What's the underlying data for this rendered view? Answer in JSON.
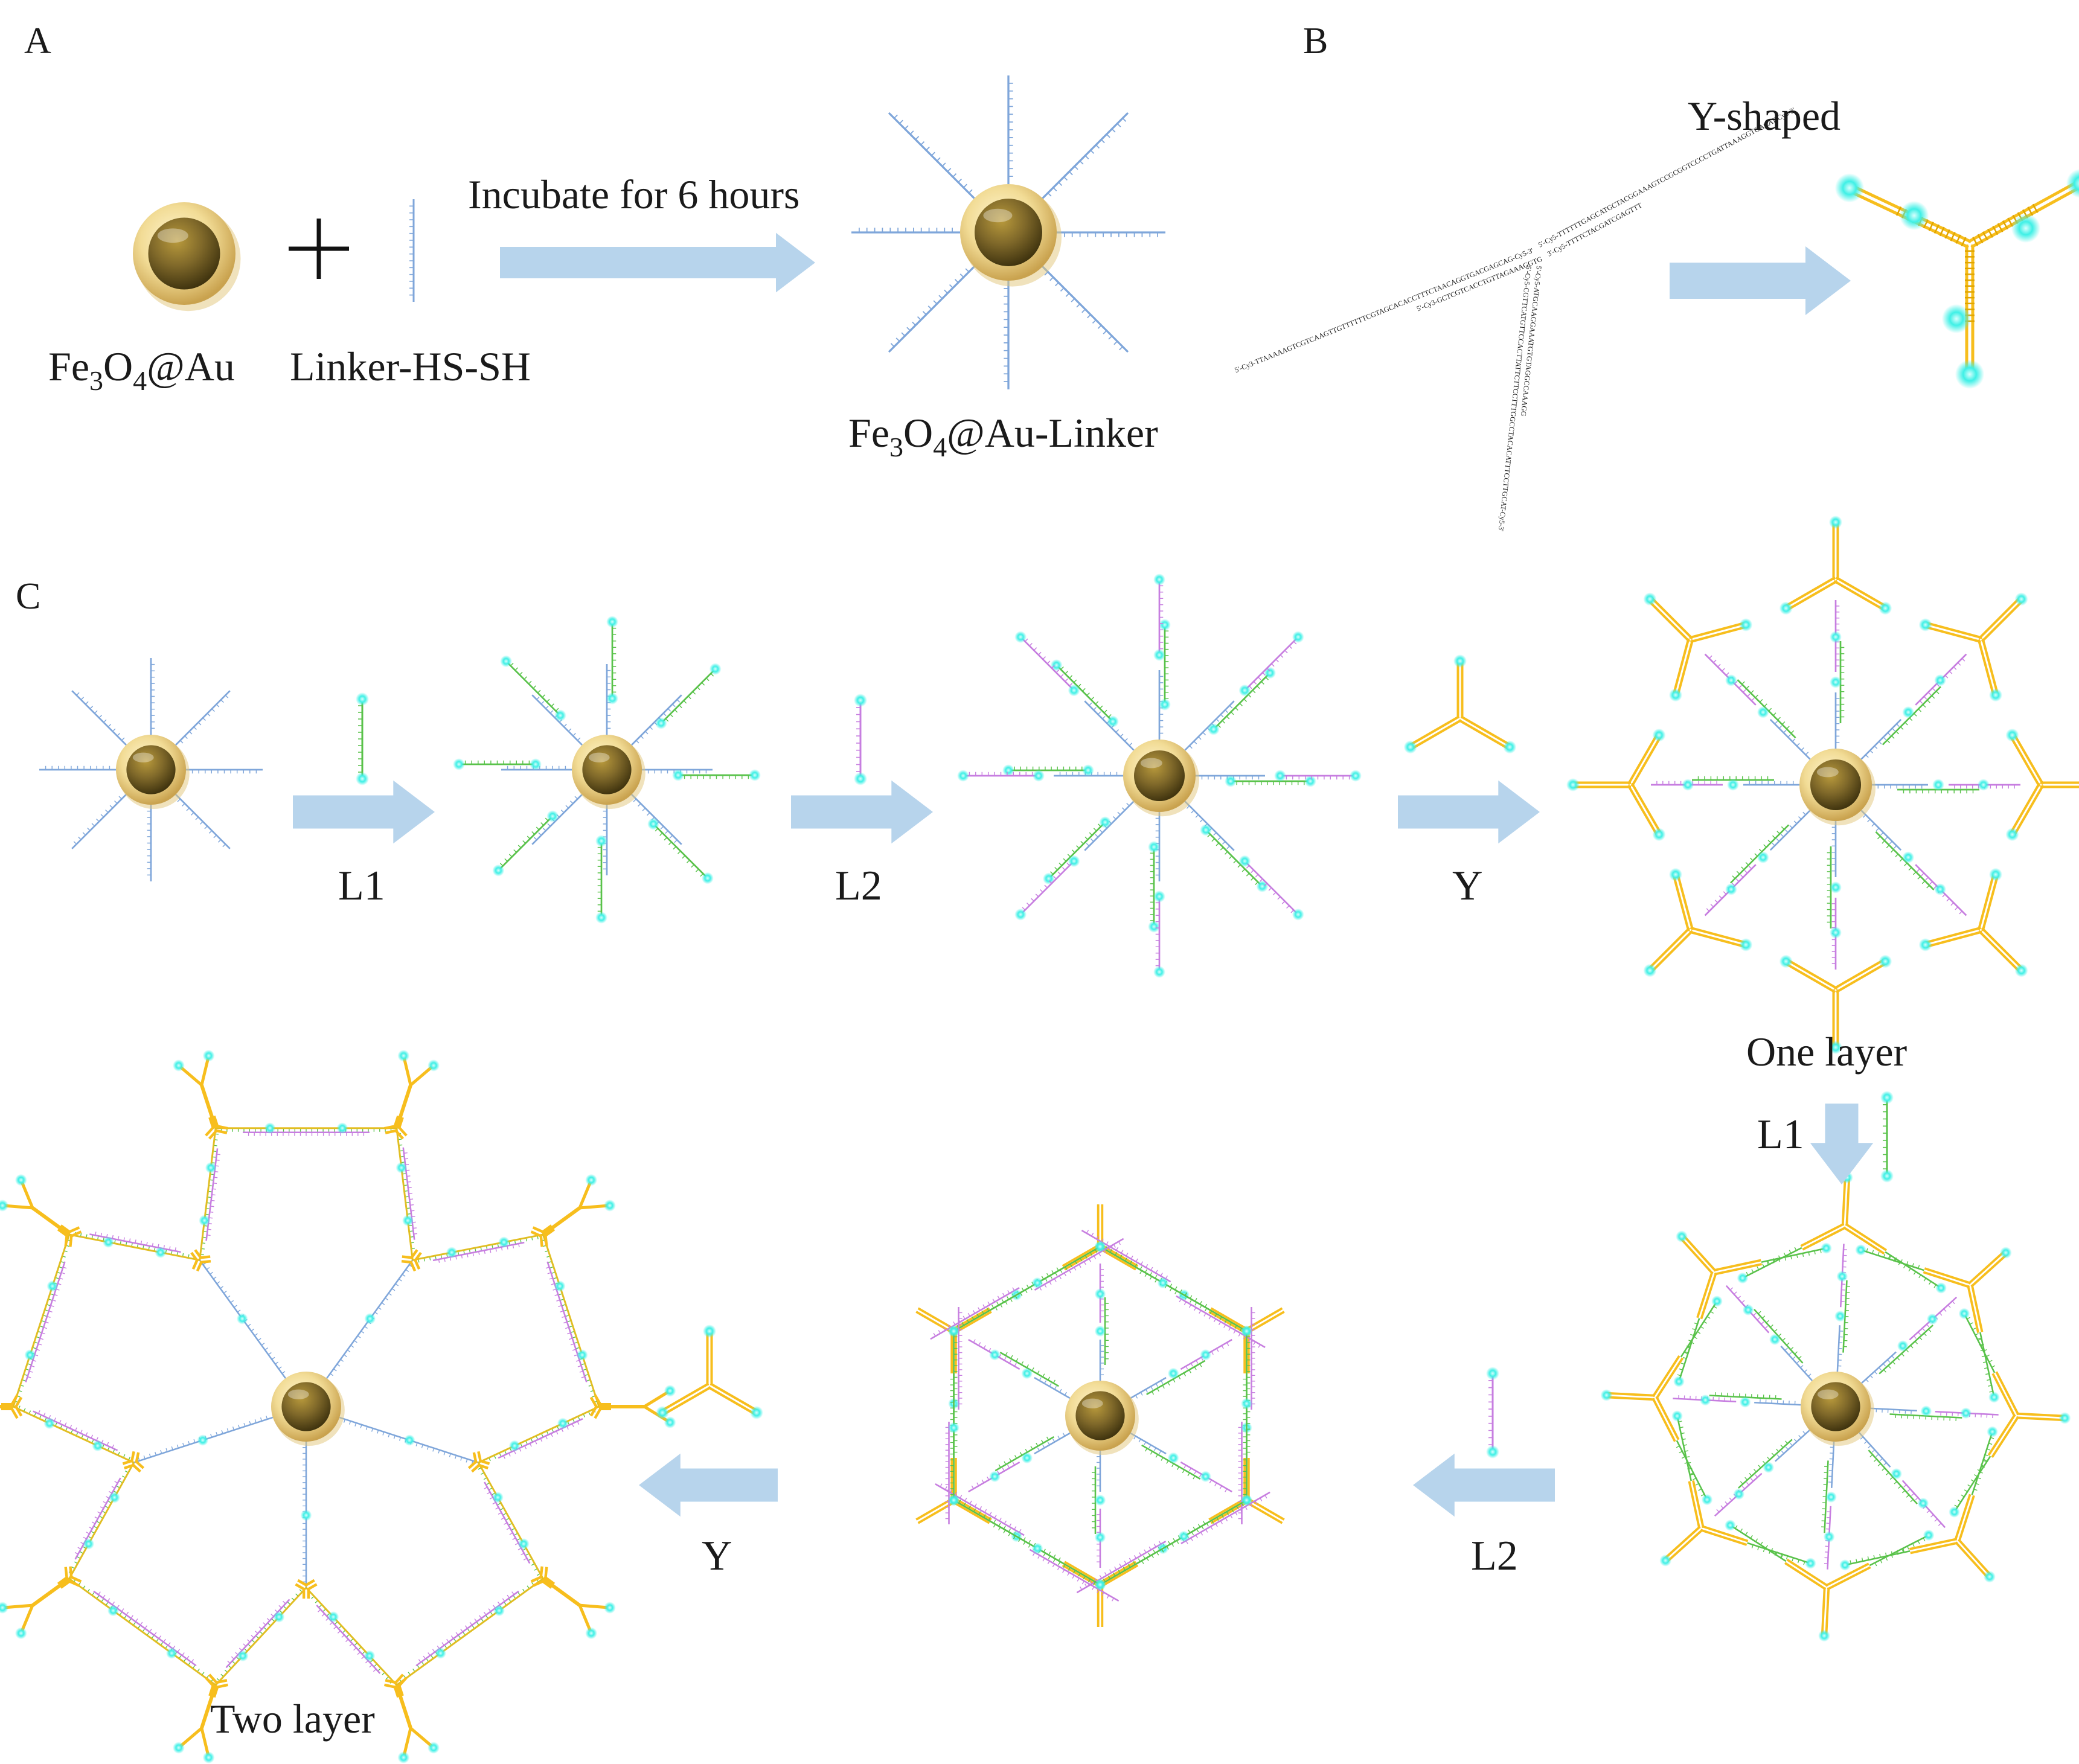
{
  "panels": {
    "a": {
      "letter": "A",
      "particle_label": "Fe3O4@Au",
      "linker_label": "Linker-HS-SH",
      "arrow_label": "Incubate for 6 hours",
      "product_label": "Fe3O4@Au-Linker"
    },
    "b": {
      "letter": "B",
      "title": "Y-shaped",
      "strand_text": {
        "s1": "5'-Cy3-TTAAAAAGTCGTCAAGTTGTTTTTTCGTAGCACACCTTTCTAACAGGTGACGAGCAG-Cy5-3'",
        "s2": "5'-Cy5-TTTTTTGAGCATGCTACGGAAAGTCCGCGGTCCCCTGATTAAAGGTGACAT-Cy5-3'",
        "s3": "5'-Cy5-CGTTCATGTTCCACTTATTCTTCCTTTGGCCTACACATTTCCTTGCAT-Cy5-3'"
      }
    },
    "c": {
      "letter": "C",
      "steps": [
        "L1",
        "L2",
        "Y"
      ],
      "bottom_steps": [
        "L1",
        "L2",
        "Y"
      ],
      "one_layer_label": "One layer",
      "two_layer_label": "Two layer"
    }
  },
  "colors": {
    "linker": "#7fa6da",
    "l1": "#59c24a",
    "l2": "#c77ee0",
    "y_strand": "#f7be1d",
    "dye": "#30e8e0",
    "arrow": "#b7d4ec",
    "shell": "#f2dc96",
    "core": "#6d5818"
  },
  "icons": {
    "particle": "gold-nanoparticle-icon",
    "plus": "plus-icon",
    "arrow": "right-arrow-icon"
  }
}
